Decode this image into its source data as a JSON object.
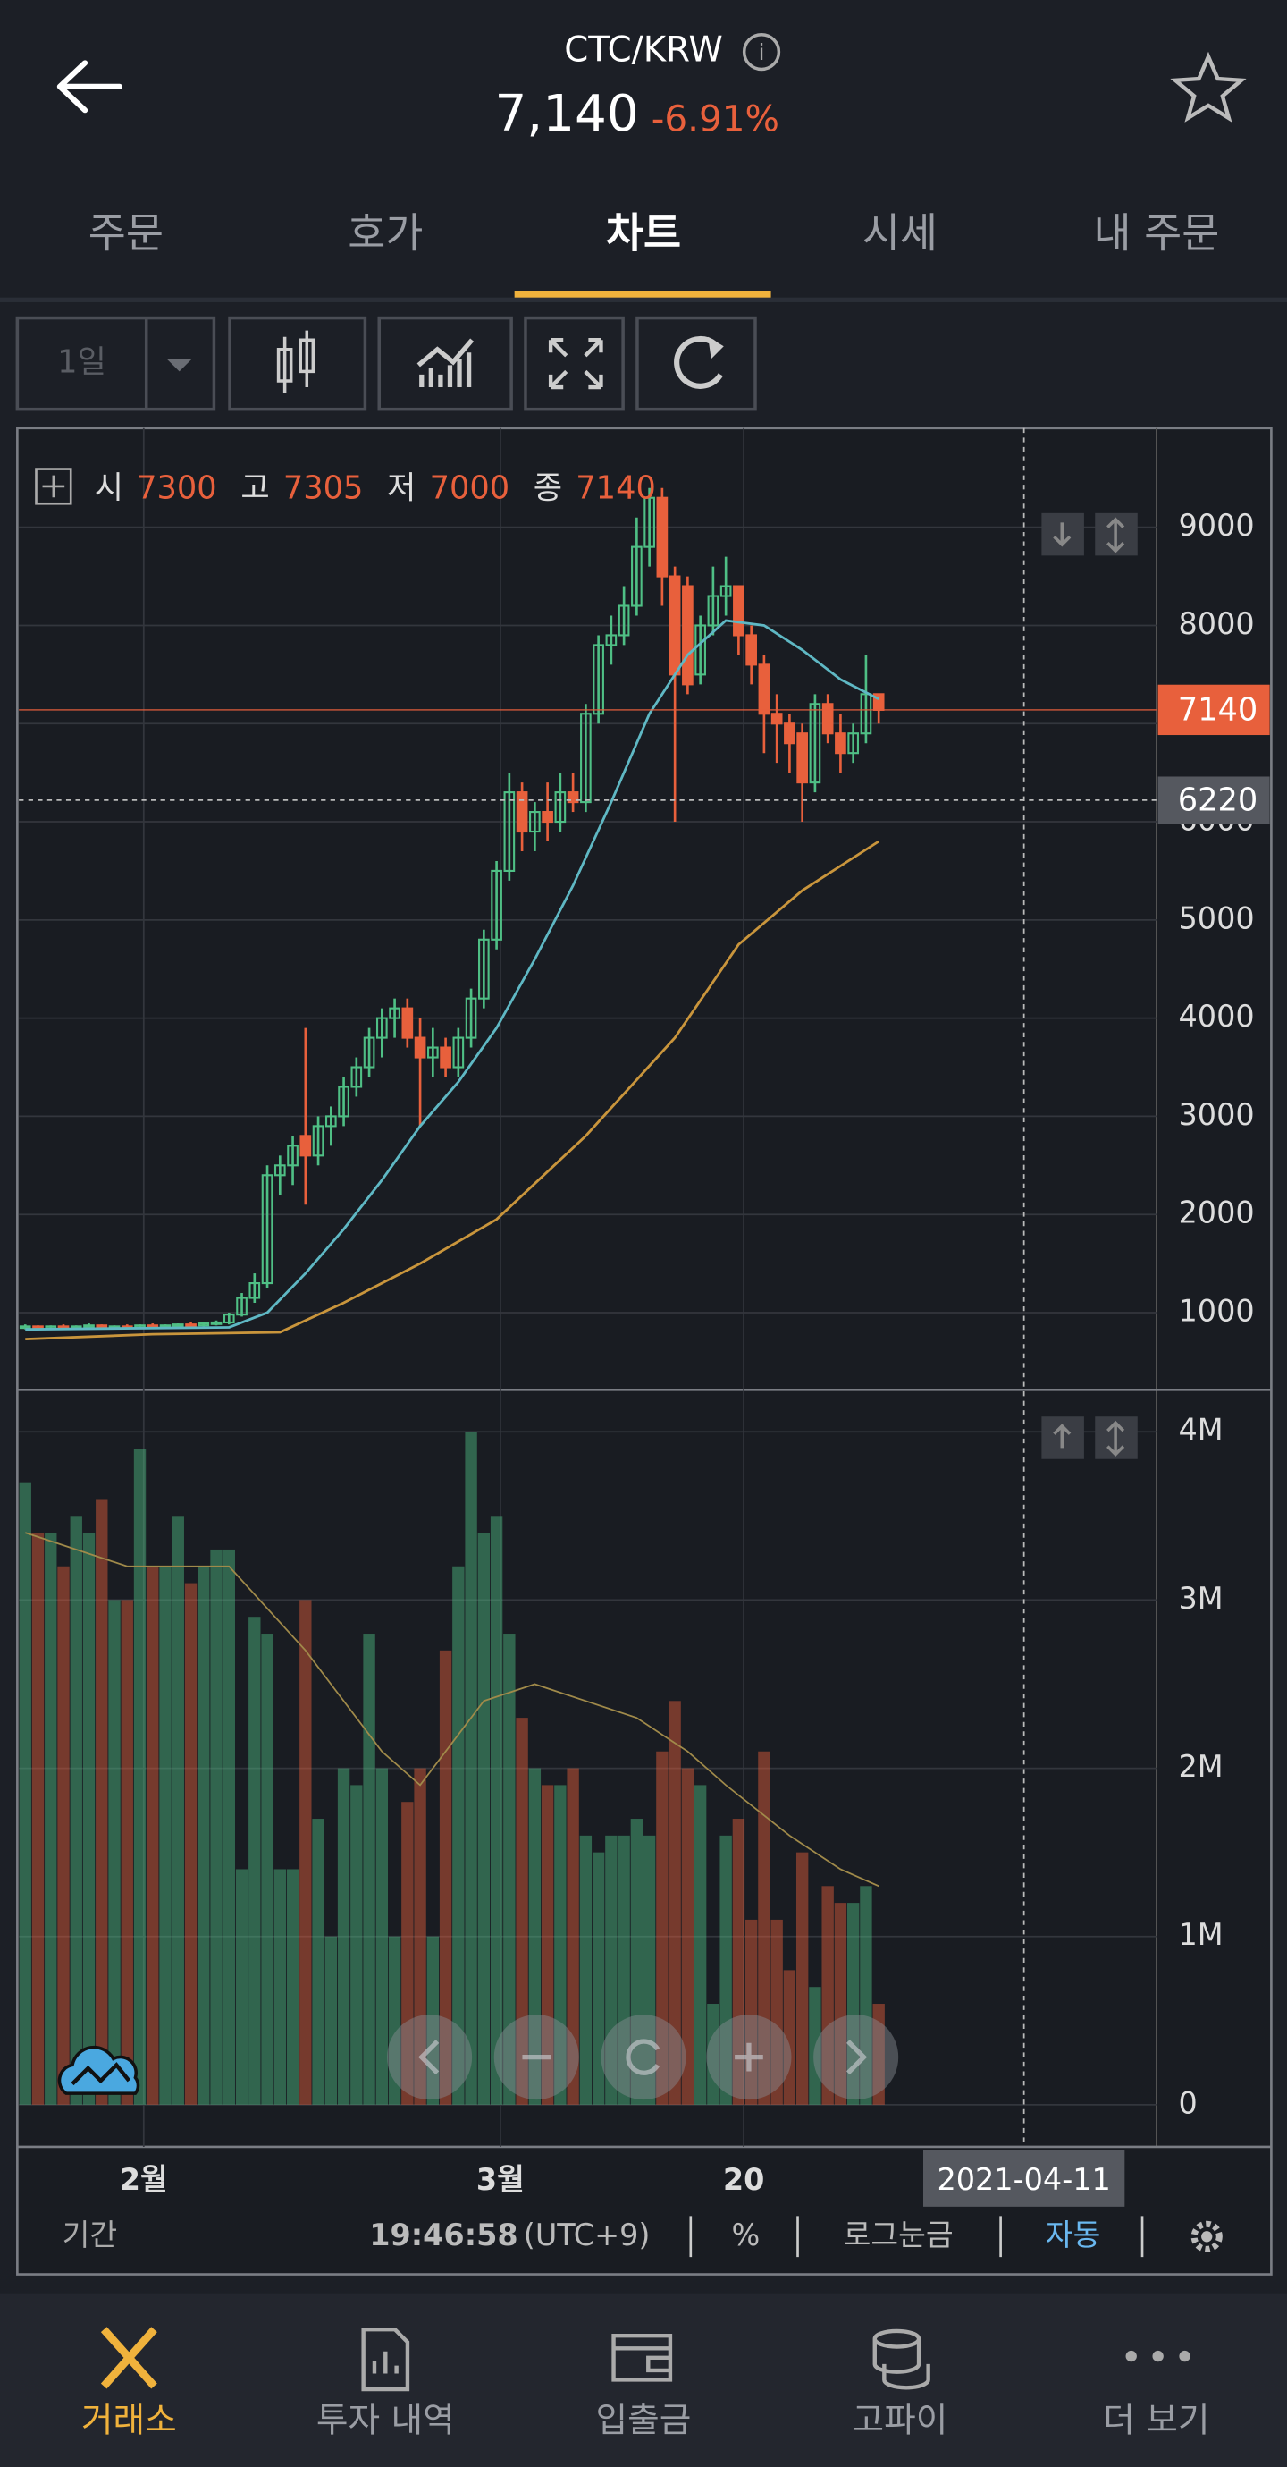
{
  "header": {
    "pair": "CTC/KRW",
    "price": "7,140",
    "change": "-6.91%"
  },
  "tabs": [
    "주문",
    "호가",
    "차트",
    "시세",
    "내 주문"
  ],
  "toolbar": {
    "period": "1일"
  },
  "chart_data": {
    "type": "candlestick",
    "ohlc_legend": [
      {
        "label": "시",
        "value": 7300
      },
      {
        "label": "고",
        "value": 7305
      },
      {
        "label": "저",
        "value": 7000
      },
      {
        "label": "종",
        "value": 7140
      }
    ],
    "ohlc": [
      [
        850,
        880,
        830,
        860
      ],
      [
        860,
        870,
        820,
        840
      ],
      [
        840,
        870,
        830,
        860
      ],
      [
        860,
        880,
        840,
        850
      ],
      [
        850,
        870,
        830,
        860
      ],
      [
        860,
        890,
        840,
        870
      ],
      [
        870,
        880,
        840,
        850
      ],
      [
        850,
        870,
        830,
        860
      ],
      [
        860,
        880,
        840,
        850
      ],
      [
        850,
        880,
        840,
        870
      ],
      [
        870,
        890,
        850,
        860
      ],
      [
        860,
        880,
        840,
        870
      ],
      [
        870,
        890,
        850,
        880
      ],
      [
        880,
        900,
        860,
        870
      ],
      [
        870,
        900,
        860,
        890
      ],
      [
        890,
        920,
        870,
        900
      ],
      [
        900,
        1000,
        880,
        980
      ],
      [
        980,
        1200,
        960,
        1150
      ],
      [
        1150,
        1400,
        1100,
        1300
      ],
      [
        1300,
        2500,
        1250,
        2400
      ],
      [
        2400,
        2600,
        2200,
        2500
      ],
      [
        2500,
        2800,
        2300,
        2700
      ],
      [
        2800,
        3900,
        2100,
        2600
      ],
      [
        2600,
        3000,
        2500,
        2900
      ],
      [
        2900,
        3100,
        2700,
        3000
      ],
      [
        3000,
        3400,
        2900,
        3300
      ],
      [
        3300,
        3600,
        3200,
        3500
      ],
      [
        3500,
        3900,
        3400,
        3800
      ],
      [
        3800,
        4100,
        3600,
        4000
      ],
      [
        4000,
        4200,
        3800,
        4100
      ],
      [
        4100,
        4200,
        3700,
        3800
      ],
      [
        3800,
        4000,
        2900,
        3600
      ],
      [
        3600,
        3900,
        3400,
        3700
      ],
      [
        3700,
        3800,
        3400,
        3500
      ],
      [
        3500,
        3900,
        3400,
        3800
      ],
      [
        3800,
        4300,
        3700,
        4200
      ],
      [
        4200,
        4900,
        4100,
        4800
      ],
      [
        4800,
        5600,
        4700,
        5500
      ],
      [
        5500,
        6500,
        5400,
        6300
      ],
      [
        6300,
        6400,
        5700,
        5900
      ],
      [
        5900,
        6200,
        5700,
        6100
      ],
      [
        6100,
        6400,
        5800,
        6000
      ],
      [
        6000,
        6500,
        5900,
        6300
      ],
      [
        6300,
        6500,
        6100,
        6200
      ],
      [
        6200,
        7200,
        6100,
        7100
      ],
      [
        7100,
        7900,
        7000,
        7800
      ],
      [
        7800,
        8100,
        7600,
        7900
      ],
      [
        7900,
        8400,
        7800,
        8200
      ],
      [
        8200,
        9100,
        8100,
        8800
      ],
      [
        8800,
        9400,
        8600,
        9300
      ],
      [
        9300,
        9400,
        8200,
        8500
      ],
      [
        8500,
        8600,
        6000,
        7500
      ],
      [
        8400,
        8500,
        7300,
        7400
      ],
      [
        7500,
        8100,
        7400,
        8000
      ],
      [
        8000,
        8600,
        7900,
        8300
      ],
      [
        8300,
        8700,
        8100,
        8400
      ],
      [
        8400,
        8400,
        7700,
        7900
      ],
      [
        7900,
        8000,
        7400,
        7600
      ],
      [
        7600,
        7700,
        6700,
        7100
      ],
      [
        7100,
        7300,
        6600,
        7000
      ],
      [
        7000,
        7100,
        6500,
        6800
      ],
      [
        6900,
        7000,
        6000,
        6400
      ],
      [
        6400,
        7300,
        6300,
        7200
      ],
      [
        7200,
        7300,
        6800,
        6900
      ],
      [
        6900,
        7100,
        6500,
        6700
      ],
      [
        6700,
        7000,
        6600,
        6900
      ],
      [
        6900,
        7700,
        6800,
        7300
      ],
      [
        7300,
        7305,
        7000,
        7140
      ]
    ],
    "up_color": "#4fbf85",
    "down_color": "#e8603c",
    "lines": [
      {
        "color": "#5fb8c4",
        "x": [
          0,
          16,
          19,
          22,
          25,
          28,
          31,
          34,
          37,
          40,
          43,
          46,
          49,
          52,
          55,
          58,
          61,
          64,
          67
        ],
        "values": [
          830,
          850,
          1000,
          1400,
          1850,
          2350,
          2900,
          3350,
          3900,
          4600,
          5350,
          6200,
          7100,
          7700,
          8050,
          8000,
          7750,
          7450,
          7250
        ]
      },
      {
        "color": "#c9953c",
        "x": [
          0,
          10,
          20,
          25,
          31,
          37,
          44,
          51,
          56,
          61,
          67
        ],
        "values": [
          730,
          780,
          800,
          1100,
          1500,
          1950,
          2800,
          3800,
          4750,
          5300,
          5800
        ]
      }
    ],
    "ylim": [
      230,
      10010
    ],
    "yticks": [
      1000,
      2000,
      3000,
      4000,
      5000,
      6000,
      7000,
      8000,
      9000
    ],
    "last_price": 7140,
    "crosshair_price": 6220,
    "volume": [
      3700000,
      3400000,
      3400000,
      3200000,
      3500000,
      3400000,
      3600000,
      3000000,
      3000000,
      3900000,
      3200000,
      3200000,
      3500000,
      3100000,
      3200000,
      3300000,
      3300000,
      1400000,
      2900000,
      2800000,
      1400000,
      1400000,
      3000000,
      1700000,
      1000000,
      2000000,
      1900000,
      2800000,
      2000000,
      1000000,
      1800000,
      2000000,
      1000000,
      2700000,
      3200000,
      4000000,
      3400000,
      3500000,
      2800000,
      2300000,
      2000000,
      1900000,
      1900000,
      2000000,
      1600000,
      1500000,
      1600000,
      1600000,
      1700000,
      1600000,
      2100000,
      2400000,
      2000000,
      1900000,
      600000,
      1600000,
      1700000,
      1100000,
      2100000,
      1100000,
      800000,
      1500000,
      700000,
      1300000,
      1200000,
      1200000,
      1300000,
      600000
    ],
    "volume_line": {
      "color": "#a08a4a",
      "x": [
        0,
        8,
        16,
        22,
        28,
        31,
        34,
        36,
        40,
        44,
        48,
        52,
        55,
        60,
        64,
        67
      ],
      "values": [
        3400000,
        3200000,
        3200000,
        2700000,
        2100000,
        1900000,
        2200000,
        2400000,
        2500000,
        2400000,
        2300000,
        2100000,
        1900000,
        1600000,
        1400000,
        1300000
      ]
    },
    "vlim": [
      -250000,
      4240000
    ],
    "vticks": [
      0,
      {
        "value": 1000000,
        "label": "1M"
      },
      {
        "value": 2000000,
        "label": "2M"
      },
      {
        "value": 3000000,
        "label": "3M"
      },
      {
        "value": 4000000,
        "label": "4M"
      }
    ],
    "xlim": [
      -0.5,
      88.8
    ],
    "xticks": [
      {
        "value": 9.3,
        "label": "2월"
      },
      {
        "value": 37.3,
        "label": "3월"
      },
      {
        "value": 56.4,
        "label": "20"
      }
    ],
    "crosshair": {
      "value": 78.4,
      "label": "2021-04-11"
    }
  },
  "footer": {
    "period": "기간",
    "time": "19:46:58",
    "tz": "(UTC+9)",
    "percent": "%",
    "log": "로그눈금",
    "auto": "자동"
  },
  "nav": [
    "거래소",
    "투자 내역",
    "입출금",
    "고파이",
    "더 보기"
  ]
}
